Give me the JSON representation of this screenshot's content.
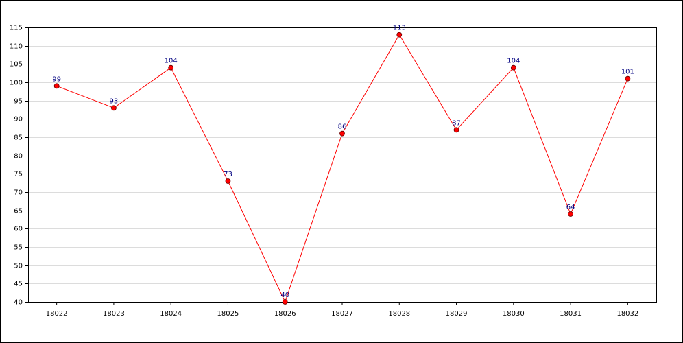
{
  "chart_data": {
    "type": "line",
    "categories": [
      "18022",
      "18023",
      "18024",
      "18025",
      "18026",
      "18027",
      "18028",
      "18029",
      "18030",
      "18031",
      "18032"
    ],
    "series": [
      {
        "color": "#ff0000",
        "values": [
          99,
          93,
          104,
          73,
          40,
          86,
          113,
          87,
          104,
          64,
          101
        ]
      }
    ],
    "ylim": [
      40,
      115
    ],
    "yticks": [
      40,
      45,
      50,
      55,
      60,
      65,
      70,
      75,
      80,
      85,
      90,
      95,
      100,
      105,
      110,
      115
    ],
    "grid": true,
    "value_label_color": "#000080"
  }
}
